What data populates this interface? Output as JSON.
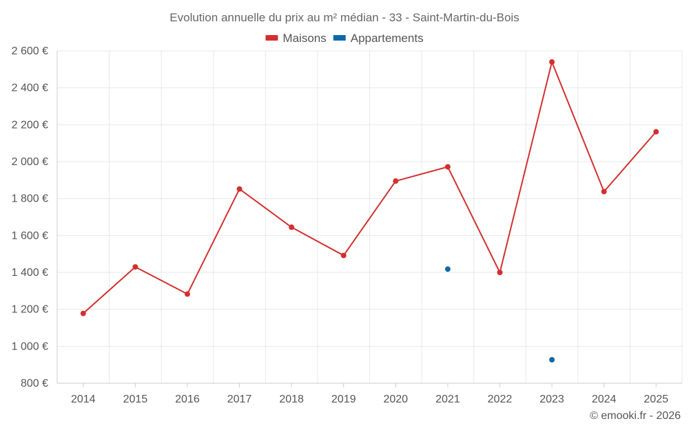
{
  "chart_data": {
    "type": "line",
    "title": "Evolution annuelle du prix au m² médian - 33 - Saint-Martin-du-Bois",
    "categories": [
      "2014",
      "2015",
      "2016",
      "2017",
      "2018",
      "2019",
      "2020",
      "2021",
      "2022",
      "2023",
      "2024",
      "2025"
    ],
    "series": [
      {
        "name": "Maisons",
        "color": "#d32f2f",
        "style": "line-markers",
        "values": [
          1178,
          1430,
          1283,
          1852,
          1645,
          1492,
          1895,
          1972,
          1400,
          2540,
          1838,
          2162
        ]
      },
      {
        "name": "Appartements",
        "color": "#0d6aa6",
        "style": "markers",
        "values": [
          null,
          null,
          null,
          null,
          null,
          null,
          null,
          1418,
          null,
          927,
          null,
          null
        ]
      }
    ],
    "ylim": [
      800,
      2600
    ],
    "yticks": [
      800,
      1000,
      1200,
      1400,
      1600,
      1800,
      2000,
      2200,
      2400,
      2600
    ],
    "ytick_labels": [
      "800 €",
      "1 000 €",
      "1 200 €",
      "1 400 €",
      "1 600 €",
      "1 800 €",
      "2 000 €",
      "2 200 €",
      "2 400 €",
      "2 600 €"
    ],
    "xlabel": "",
    "ylabel": "",
    "legend_position": "top-center",
    "grid": true
  },
  "credit": "© emooki.fr - 2026"
}
